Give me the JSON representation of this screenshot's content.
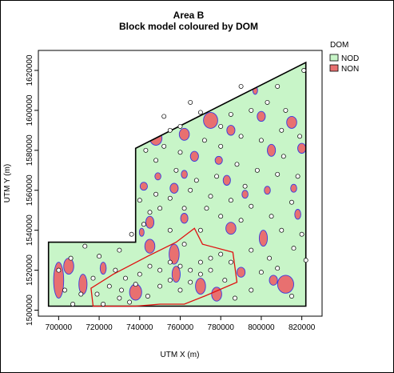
{
  "title": "Area B",
  "subtitle": "Block model coloured by DOM",
  "chart_data": {
    "type": "map",
    "xlabel": "UTM X (m)",
    "ylabel": "UTM Y (m)",
    "xlim": [
      690000,
      830000
    ],
    "ylim": [
      1497000,
      1630000
    ],
    "x_ticks": [
      700000,
      720000,
      740000,
      760000,
      780000,
      800000,
      820000
    ],
    "y_ticks": [
      1500000,
      1520000,
      1540000,
      1560000,
      1580000,
      1600000,
      1620000
    ],
    "x_tick_labels": [
      "700000",
      "720000",
      "740000",
      "760000",
      "780000",
      "800000",
      "820000"
    ],
    "y_tick_labels": [
      "1500000",
      "1520000",
      "1540000",
      "1560000",
      "1580000",
      "1600000",
      "1620000"
    ],
    "legend": {
      "title": "DOM",
      "placement": "top-right",
      "items": [
        {
          "label": "NOD",
          "color": "#c8f5c8"
        },
        {
          "label": "NON",
          "color": "#e87070"
        }
      ]
    },
    "boundary": [
      [
        695000,
        1502000
      ],
      [
        822000,
        1502000
      ],
      [
        822000,
        1624000
      ],
      [
        738000,
        1581000
      ],
      [
        738000,
        1534000
      ],
      [
        695000,
        1534000
      ]
    ],
    "red_outline": [
      [
        717000,
        1502000
      ],
      [
        716000,
        1511000
      ],
      [
        727000,
        1518000
      ],
      [
        744000,
        1527000
      ],
      [
        758000,
        1534000
      ],
      [
        767000,
        1541000
      ],
      [
        771000,
        1533000
      ],
      [
        786000,
        1529000
      ],
      [
        788000,
        1514000
      ],
      [
        772000,
        1507000
      ],
      [
        762000,
        1503000
      ],
      [
        750000,
        1503000
      ],
      [
        738000,
        1502000
      ],
      [
        724000,
        1502000
      ]
    ],
    "non_patches": [
      {
        "x": 700000,
        "y": 1515000,
        "rx": 2500,
        "ry": 9000
      },
      {
        "x": 712000,
        "y": 1513000,
        "rx": 2000,
        "ry": 5000
      },
      {
        "x": 705000,
        "y": 1522000,
        "rx": 2500,
        "ry": 4000
      },
      {
        "x": 722000,
        "y": 1521000,
        "rx": 1500,
        "ry": 3000
      },
      {
        "x": 738000,
        "y": 1509000,
        "rx": 3000,
        "ry": 4000
      },
      {
        "x": 745000,
        "y": 1532000,
        "rx": 2500,
        "ry": 3500
      },
      {
        "x": 757000,
        "y": 1528000,
        "rx": 2500,
        "ry": 5000
      },
      {
        "x": 758000,
        "y": 1518000,
        "rx": 2000,
        "ry": 4000
      },
      {
        "x": 770000,
        "y": 1512000,
        "rx": 2500,
        "ry": 4000
      },
      {
        "x": 778000,
        "y": 1508000,
        "rx": 2500,
        "ry": 3500
      },
      {
        "x": 790000,
        "y": 1519000,
        "rx": 2000,
        "ry": 2500
      },
      {
        "x": 801000,
        "y": 1536000,
        "rx": 2000,
        "ry": 4000
      },
      {
        "x": 812000,
        "y": 1513000,
        "rx": 4000,
        "ry": 4500
      },
      {
        "x": 806000,
        "y": 1515000,
        "rx": 2000,
        "ry": 2500
      },
      {
        "x": 785000,
        "y": 1541000,
        "rx": 2500,
        "ry": 3000
      },
      {
        "x": 745000,
        "y": 1544000,
        "rx": 2000,
        "ry": 3000
      },
      {
        "x": 762000,
        "y": 1546000,
        "rx": 1800,
        "ry": 2500
      },
      {
        "x": 742000,
        "y": 1562000,
        "rx": 1800,
        "ry": 2000
      },
      {
        "x": 757000,
        "y": 1561000,
        "rx": 2000,
        "ry": 2500
      },
      {
        "x": 762000,
        "y": 1568000,
        "rx": 1500,
        "ry": 2000
      },
      {
        "x": 767000,
        "y": 1577000,
        "rx": 2000,
        "ry": 2500
      },
      {
        "x": 779000,
        "y": 1575000,
        "rx": 1800,
        "ry": 2000
      },
      {
        "x": 783000,
        "y": 1565000,
        "rx": 1800,
        "ry": 2500
      },
      {
        "x": 792000,
        "y": 1558000,
        "rx": 1500,
        "ry": 2000
      },
      {
        "x": 748000,
        "y": 1586000,
        "rx": 3000,
        "ry": 3500
      },
      {
        "x": 762000,
        "y": 1588000,
        "rx": 2500,
        "ry": 3000
      },
      {
        "x": 775000,
        "y": 1595000,
        "rx": 3500,
        "ry": 4000
      },
      {
        "x": 785000,
        "y": 1590000,
        "rx": 2000,
        "ry": 2500
      },
      {
        "x": 800000,
        "y": 1597000,
        "rx": 2000,
        "ry": 2500
      },
      {
        "x": 805000,
        "y": 1580000,
        "rx": 2000,
        "ry": 3000
      },
      {
        "x": 815000,
        "y": 1594000,
        "rx": 2500,
        "ry": 3000
      },
      {
        "x": 820000,
        "y": 1581000,
        "rx": 2000,
        "ry": 2500
      },
      {
        "x": 797000,
        "y": 1610000,
        "rx": 1200,
        "ry": 2000
      },
      {
        "x": 818000,
        "y": 1548000,
        "rx": 1500,
        "ry": 2500
      },
      {
        "x": 816000,
        "y": 1561000,
        "rx": 1500,
        "ry": 2000
      },
      {
        "x": 731000,
        "y": 1548000,
        "rx": 1500,
        "ry": 3000
      },
      {
        "x": 741000,
        "y": 1539000,
        "rx": 1200,
        "ry": 2000
      },
      {
        "x": 803000,
        "y": 1560000,
        "rx": 1500,
        "ry": 2000
      },
      {
        "x": 749000,
        "y": 1567000,
        "rx": 1500,
        "ry": 1800
      }
    ],
    "sample_points": [
      [
        707000,
        1503000
      ],
      [
        703000,
        1510000
      ],
      [
        700000,
        1520000
      ],
      [
        706000,
        1526000
      ],
      [
        711000,
        1508000
      ],
      [
        719000,
        1508000
      ],
      [
        722000,
        1503000
      ],
      [
        725000,
        1512000
      ],
      [
        730000,
        1506000
      ],
      [
        735000,
        1504000
      ],
      [
        728000,
        1520000
      ],
      [
        733000,
        1516000
      ],
      [
        740000,
        1518000
      ],
      [
        745000,
        1522000
      ],
      [
        750000,
        1520000
      ],
      [
        755000,
        1524000
      ],
      [
        760000,
        1522000
      ],
      [
        765000,
        1520000
      ],
      [
        770000,
        1524000
      ],
      [
        775000,
        1526000
      ],
      [
        780000,
        1528000
      ],
      [
        785000,
        1524000
      ],
      [
        750000,
        1512000
      ],
      [
        755000,
        1515000
      ],
      [
        760000,
        1510000
      ],
      [
        765000,
        1514000
      ],
      [
        770000,
        1518000
      ],
      [
        775000,
        1520000
      ],
      [
        782000,
        1515000
      ],
      [
        787000,
        1506000
      ],
      [
        795000,
        1510000
      ],
      [
        800000,
        1519000
      ],
      [
        808000,
        1521000
      ],
      [
        815000,
        1507000
      ],
      [
        822000,
        1525000
      ],
      [
        820000,
        1538000
      ],
      [
        810000,
        1540000
      ],
      [
        795000,
        1530000
      ],
      [
        790000,
        1545000
      ],
      [
        780000,
        1547000
      ],
      [
        770000,
        1540000
      ],
      [
        762000,
        1533000
      ],
      [
        755000,
        1540000
      ],
      [
        750000,
        1551000
      ],
      [
        745000,
        1549000
      ],
      [
        740000,
        1555000
      ],
      [
        748000,
        1558000
      ],
      [
        755000,
        1556000
      ],
      [
        765000,
        1560000
      ],
      [
        775000,
        1557000
      ],
      [
        785000,
        1555000
      ],
      [
        795000,
        1552000
      ],
      [
        805000,
        1547000
      ],
      [
        815000,
        1554000
      ],
      [
        818000,
        1567000
      ],
      [
        808000,
        1568000
      ],
      [
        798000,
        1570000
      ],
      [
        788000,
        1573000
      ],
      [
        778000,
        1567000
      ],
      [
        768000,
        1565000
      ],
      [
        758000,
        1570000
      ],
      [
        748000,
        1575000
      ],
      [
        743000,
        1580000
      ],
      [
        752000,
        1582000
      ],
      [
        760000,
        1579000
      ],
      [
        772000,
        1585000
      ],
      [
        780000,
        1582000
      ],
      [
        790000,
        1587000
      ],
      [
        800000,
        1585000
      ],
      [
        810000,
        1590000
      ],
      [
        819000,
        1587000
      ],
      [
        812000,
        1600000
      ],
      [
        803000,
        1604000
      ],
      [
        795000,
        1600000
      ],
      [
        785000,
        1598000
      ],
      [
        770000,
        1599000
      ],
      [
        760000,
        1592000
      ],
      [
        755000,
        1590000
      ],
      [
        821000,
        1620000
      ],
      [
        808000,
        1612000
      ],
      [
        790000,
        1612000
      ],
      [
        730000,
        1530000
      ],
      [
        720000,
        1527000
      ],
      [
        713000,
        1532000
      ],
      [
        736000,
        1538000
      ],
      [
        742000,
        1543000
      ],
      [
        762000,
        1551000
      ],
      [
        773000,
        1551000
      ],
      [
        731000,
        1510000
      ],
      [
        738000,
        1513000
      ],
      [
        744000,
        1507000
      ],
      [
        717000,
        1516000
      ],
      [
        804000,
        1526000
      ],
      [
        816000,
        1531000
      ],
      [
        811000,
        1577000
      ],
      [
        792000,
        1562000
      ],
      [
        780000,
        1592000
      ],
      [
        765000,
        1604000
      ],
      [
        752000,
        1597000
      ]
    ]
  }
}
